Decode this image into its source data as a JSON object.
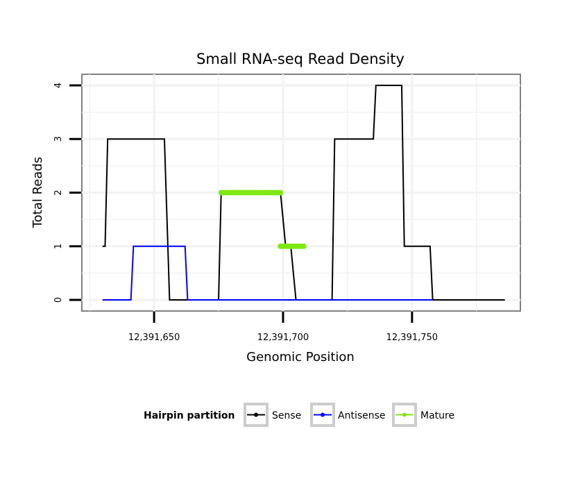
{
  "chart_data": {
    "type": "line",
    "title": "Small RNA-seq Read Density",
    "xlabel": "Genomic Position",
    "ylabel": "Total Reads",
    "xlim": [
      12391622,
      12391792
    ],
    "ylim": [
      0,
      4
    ],
    "x_ticks": [
      12391650,
      12391700,
      12391750
    ],
    "x_tick_labels": [
      "12,391,650",
      "12,391,700",
      "12,391,750"
    ],
    "y_ticks": [
      0,
      1,
      2,
      3,
      4
    ],
    "y_tick_labels": [
      "0",
      "1",
      "2",
      "3",
      "4"
    ],
    "grid": true,
    "legend": {
      "title": "Hairpin partition",
      "placement": "bottom",
      "entries": [
        "Sense",
        "Antisense",
        "Mature"
      ]
    },
    "series": [
      {
        "name": "Sense",
        "color": "#000000",
        "style": "line",
        "x": [
          12391630,
          12391631,
          12391632,
          12391654,
          12391656,
          12391675,
          12391676,
          12391699,
          12391701,
          12391703,
          12391705,
          12391719,
          12391720,
          12391735,
          12391736,
          12391746,
          12391747,
          12391757,
          12391758,
          12391786
        ],
        "values": [
          1,
          1,
          3,
          3,
          0,
          0,
          2,
          2,
          1,
          1,
          0,
          0,
          3,
          3,
          4,
          4,
          1,
          1,
          0,
          0
        ]
      },
      {
        "name": "Antisense",
        "color": "#0000FF",
        "style": "line",
        "x": [
          12391630,
          12391641,
          12391642,
          12391662,
          12391663,
          12391758
        ],
        "values": [
          0,
          0,
          1,
          1,
          0,
          0
        ]
      },
      {
        "name": "Mature",
        "color": "#7FE813",
        "style": "points",
        "segments": [
          {
            "x": [
              12391676,
              12391699
            ],
            "value": 2
          },
          {
            "x": [
              12391699,
              12391708
            ],
            "value": 1
          }
        ]
      }
    ]
  }
}
